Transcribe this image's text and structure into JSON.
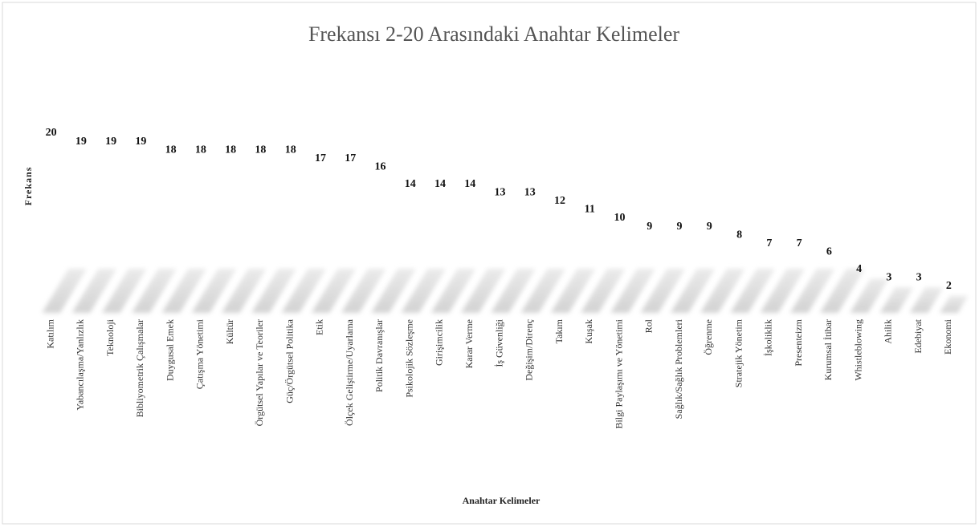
{
  "chart_data": {
    "type": "bar",
    "title": "Frekansı 2-20 Arasındaki Anahtar Kelimeler",
    "x_label": "Anahtar Kelimeler",
    "y_label": "Frekans",
    "categories": [
      "Katılım",
      "Yabancılaşma/Yanlızlık",
      "Teknoloji",
      "Bibliyometrik Çalışmalar",
      "Duygusal Emek",
      "Çatışma Yönetimi",
      "Kültür",
      "Örgütsel Yapılar ve Teoriler",
      "Güç/Örgütsel Politika",
      "Etik",
      "Ölçek Geliştirme/Uyarlama",
      "Politik Davranışlar",
      "Psikolojik Sözleşme",
      "Girişimcilik",
      "Karar Verme",
      "İş Güvenliği",
      "Değişim/Direnç",
      "Takım",
      "Kuşak",
      "Bilgi Paylaşımı ve Yönetimi",
      "Rol",
      "Sağlık/Sağlık Problemleri",
      "Öğrenme",
      "Stratejik Yönetim",
      "İşkoliklik",
      "Presenteizm",
      "Kurumsal İtibar",
      "Whistleblowing",
      "Ahilik",
      "Edebiyat",
      "Ekonomi"
    ],
    "values": [
      20,
      19,
      19,
      19,
      18,
      18,
      18,
      18,
      18,
      17,
      17,
      16,
      14,
      14,
      14,
      13,
      13,
      12,
      11,
      10,
      9,
      9,
      9,
      8,
      7,
      7,
      6,
      4,
      3,
      3,
      2
    ],
    "ylim": [
      0,
      20
    ]
  }
}
